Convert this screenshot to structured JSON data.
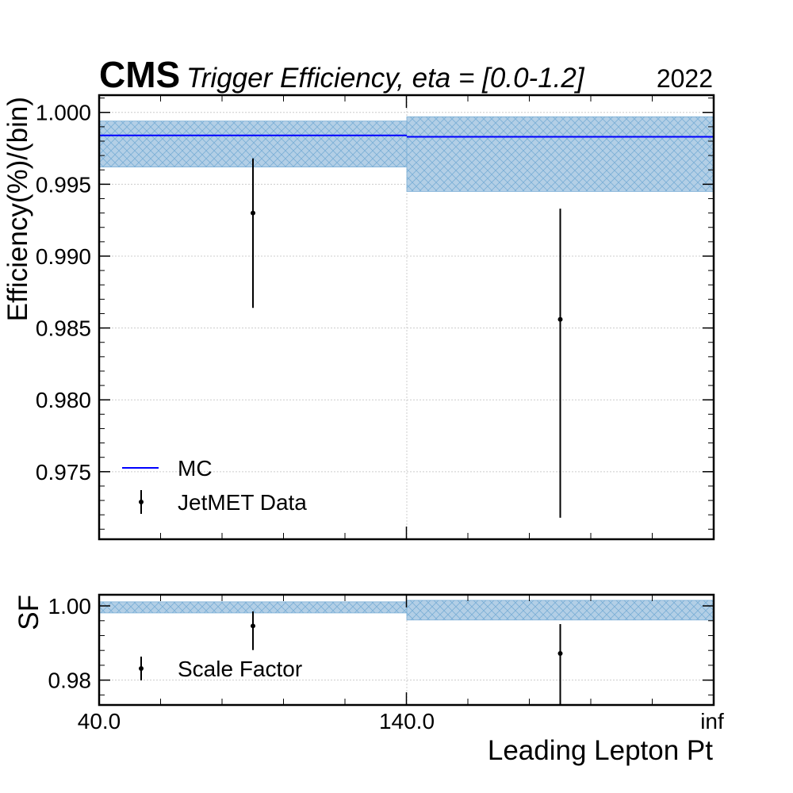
{
  "experiment": "CMS",
  "title": "Trigger Efficiency, eta = [0.0-1.2]",
  "year": "2022",
  "colors": {
    "mc_line": "#0000ff",
    "band_fill": "#b3cfe6",
    "band_hatch": "#7aaed6",
    "data_marker": "#000000",
    "grid": "#cccccc"
  },
  "x_axis": {
    "label": "Leading Lepton Pt",
    "bin_edges_labels": [
      "40.0",
      "140.0",
      "inf"
    ]
  },
  "chart_data": [
    {
      "type": "errorbar",
      "panel": "efficiency",
      "ylabel": "Efficiency(%)/(bin)",
      "ylim": [
        0.9703,
        1.0012
      ],
      "yticks": [
        0.975,
        0.98,
        0.985,
        0.99,
        0.995,
        1.0
      ],
      "ytick_labels": [
        "0.975",
        "0.980",
        "0.985",
        "0.990",
        "0.995",
        "1.000"
      ],
      "grid": true,
      "legend": {
        "placement": "lower-left",
        "entries": [
          "MC",
          "JetMET Data"
        ]
      },
      "series": [
        {
          "name": "MC",
          "kind": "step-with-band",
          "values": [
            0.9984,
            0.9983
          ],
          "band_low": [
            0.9962,
            0.9945
          ],
          "band_high": [
            0.9994,
            0.9997
          ]
        },
        {
          "name": "JetMET Data",
          "kind": "points-with-errors",
          "values": [
            0.993,
            0.9856
          ],
          "err_low": [
            0.9864,
            0.9718
          ],
          "err_high": [
            0.9968,
            0.9933
          ]
        }
      ]
    },
    {
      "type": "errorbar",
      "panel": "scale-factor",
      "ylabel": "SF",
      "ylim": [
        0.9733,
        1.003
      ],
      "yticks": [
        0.98,
        1.0
      ],
      "ytick_labels": [
        "0.98",
        "1.00"
      ],
      "grid": true,
      "legend": {
        "placement": "lower-left",
        "entries": [
          "Scale Factor"
        ]
      },
      "series": [
        {
          "name": "Scale Factor",
          "kind": "points-with-errors",
          "values": [
            0.9946,
            0.9872
          ],
          "err_low": [
            0.9881,
            0.9734
          ],
          "err_high": [
            0.9985,
            0.9951
          ]
        },
        {
          "kind": "band",
          "band_low": [
            0.9981,
            0.9962
          ],
          "band_high": [
            1.0011,
            1.0015
          ]
        }
      ]
    }
  ]
}
